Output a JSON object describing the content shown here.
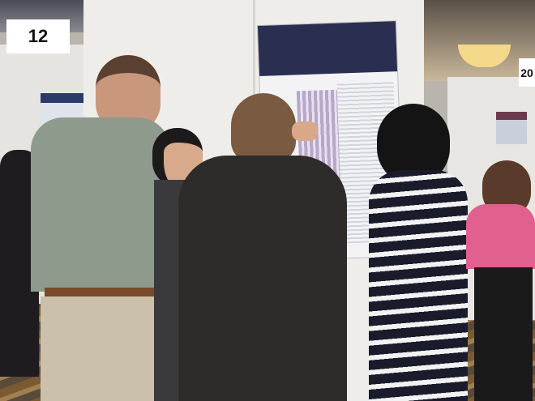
{
  "scene": {
    "board_left_number": "12",
    "board_right_number": "20",
    "colors": {
      "poster_header": "#2a2f52",
      "board": "#ecebe8",
      "carpet": "#8a6a3a",
      "pink_top": "#e0608f"
    }
  }
}
